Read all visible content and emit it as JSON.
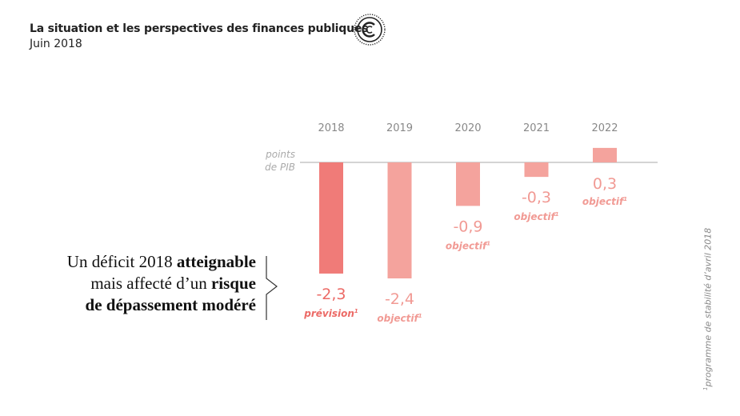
{
  "header": {
    "title": "La situation et les perspectives des finances publiques",
    "subtitle": "Juin 2018"
  },
  "logo": {
    "name": "cour-des-comptes-seal-icon"
  },
  "headline": {
    "part1": "Un déficit 2018 ",
    "bold1": "atteignable",
    "part2": "mais affecté d’un ",
    "bold2": "risque",
    "bold3": "de dépassement modéré"
  },
  "footnote": {
    "sup": "1",
    "text": "programme de stabilité d’avril 2018"
  },
  "chart_data": {
    "type": "bar",
    "categories": [
      "2018",
      "2019",
      "2020",
      "2021",
      "2022"
    ],
    "values": [
      -2.3,
      -2.4,
      -0.9,
      -0.3,
      0.3
    ],
    "value_labels": [
      "-2,3",
      "-2,4",
      "-0,9",
      "-0,3",
      "0,3"
    ],
    "status_labels": [
      "prévision",
      "objectif",
      "objectif",
      "objectif",
      "objectif"
    ],
    "status_sup": "1",
    "unit_label_line1": "points",
    "unit_label_line2": "de PIB",
    "ylim": [
      -2.4,
      0.3
    ],
    "colors": {
      "primary": "#f07b78",
      "secondary": "#f4a39d",
      "primary_text": "#ec6a66",
      "secondary_text": "#f19a94",
      "axis": "#aaaaaa",
      "category_text": "#888888"
    }
  }
}
